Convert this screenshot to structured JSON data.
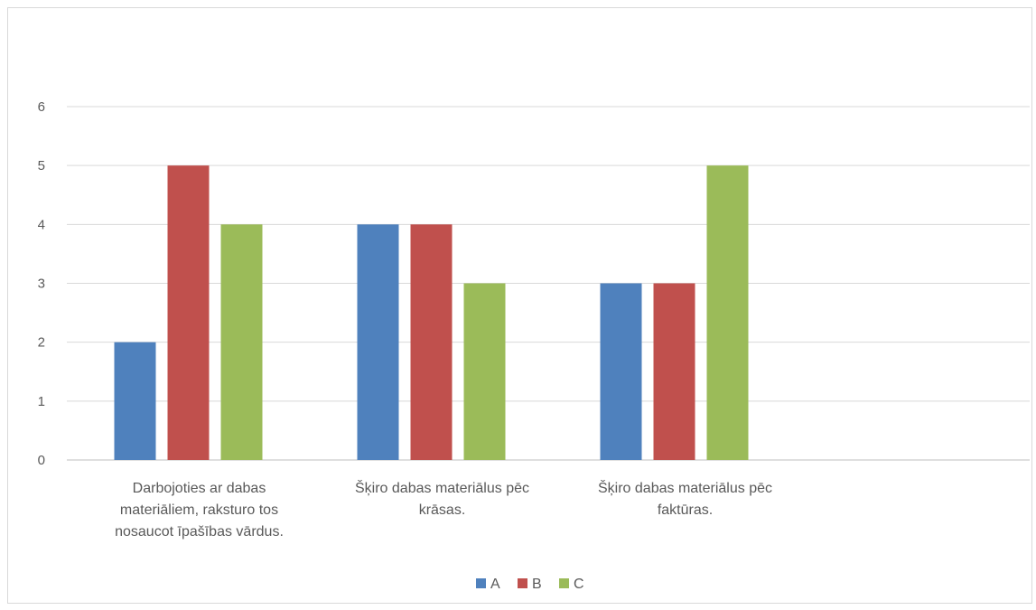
{
  "chart_data": {
    "type": "bar",
    "title": "",
    "xlabel": "",
    "ylabel": "",
    "ylim": [
      0,
      6
    ],
    "yticks": [
      0,
      1,
      2,
      3,
      4,
      5,
      6
    ],
    "grid": true,
    "legend_position": "bottom",
    "categories": [
      [
        "Darbojoties ar dabas",
        "materiāliem, raksturo tos",
        "nosaucot īpašības vārdus."
      ],
      [
        "Šķiro dabas materiālus pēc",
        "krāsas."
      ],
      [
        "Šķiro dabas materiālus pēc",
        "faktūras."
      ]
    ],
    "series": [
      {
        "name": "A",
        "color": "#4f81bd",
        "values": [
          2,
          4,
          3
        ]
      },
      {
        "name": "B",
        "color": "#c0504d",
        "values": [
          5,
          4,
          3
        ]
      },
      {
        "name": "C",
        "color": "#9bbb59",
        "values": [
          4,
          3,
          5
        ]
      }
    ]
  }
}
